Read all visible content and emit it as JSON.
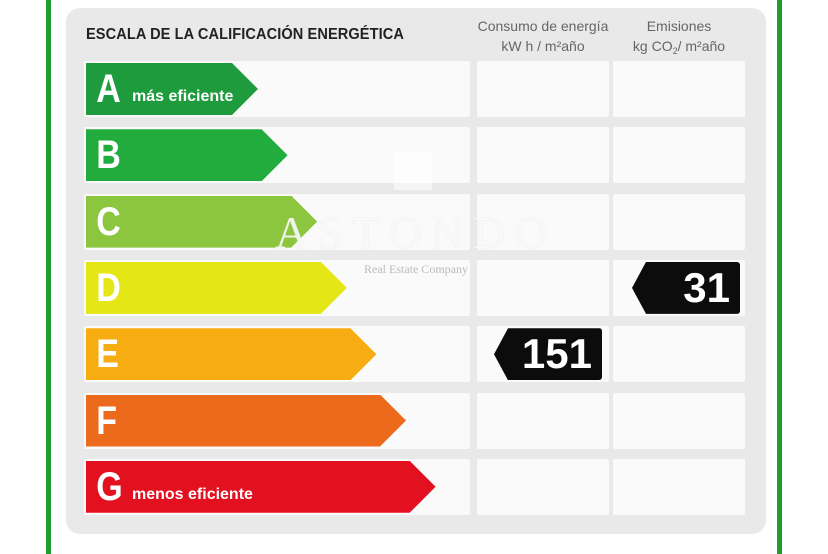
{
  "header": {
    "title": "ESCALA DE LA CALIFICACIÓN ENERGÉTICA",
    "energy_col_line1": "Consumo de energía",
    "energy_col_line2": "kW h / m²año",
    "emissions_col_line1": "Emisiones",
    "emissions_col_prefix": "kg CO",
    "emissions_col_sub": "2",
    "emissions_col_suffix": "/ m²año"
  },
  "ratings": [
    {
      "letter": "A",
      "note": "más eficiente",
      "color": "#1e9b3c",
      "length": 1
    },
    {
      "letter": "B",
      "note": "",
      "color": "#22ac3e",
      "length": 2
    },
    {
      "letter": "C",
      "note": "",
      "color": "#8cc63f",
      "length": 3
    },
    {
      "letter": "D",
      "note": "",
      "color": "#e5e616",
      "length": 4
    },
    {
      "letter": "E",
      "note": "",
      "color": "#f7ad12",
      "length": 5
    },
    {
      "letter": "F",
      "note": "",
      "color": "#ec6a1c",
      "length": 6
    },
    {
      "letter": "G",
      "note": "menos eficiente",
      "color": "#e3101f",
      "length": 7
    }
  ],
  "energy_value": {
    "value": "151",
    "rating": "E"
  },
  "emissions_value": {
    "value": "31",
    "rating": "D"
  },
  "watermark": {
    "brand": "ASTONDO",
    "tagline": "Real Estate Company"
  }
}
